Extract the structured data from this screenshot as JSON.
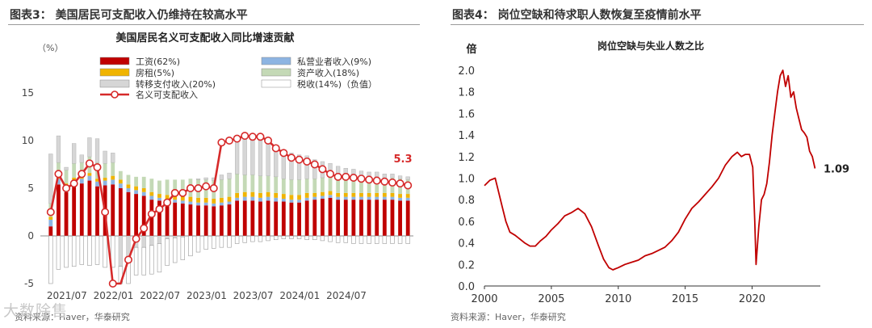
{
  "left": {
    "figure_title": "图表3：  美国居民可支配收入仍维持在较高水平",
    "source": "资料来源：Haver，华泰研究",
    "chart_data": {
      "type": "bar",
      "title": "美国居民名义可支配收入同比增速贡献",
      "ylabel": "（%）",
      "ylim": [
        -5,
        15
      ],
      "yticks": [
        -5,
        0,
        5,
        10,
        15
      ],
      "xticks": [
        "2021/07",
        "2022/01",
        "2022/07",
        "2023/01",
        "2023/07",
        "2024/01",
        "2024/07"
      ],
      "end_label": "5.3",
      "legend": [
        "工资(62%)",
        "私营业者收入(9%)",
        "房租(5%)",
        "资产收入(18%)",
        "转移支付收入(20%)",
        "税收(14%)（负值）",
        "名义可支配收入"
      ],
      "series": [
        {
          "name": "工资(62%)",
          "values": [
            1.0,
            5.4,
            4.6,
            5.2,
            5.5,
            5.8,
            5.2,
            5.3,
            5.4,
            5.0,
            4.6,
            4.4,
            4.2,
            3.8,
            3.7,
            3.5,
            3.5,
            3.4,
            3.3,
            3.2,
            3.2,
            3.1,
            3.2,
            3.3,
            3.7,
            3.7,
            3.7,
            3.6,
            3.7,
            3.6,
            3.6,
            3.5,
            3.5,
            3.7,
            3.8,
            3.9,
            4.0,
            3.8,
            3.8,
            3.8,
            3.8,
            3.8,
            3.8,
            3.8,
            3.8,
            3.7,
            3.7
          ]
        },
        {
          "name": "私营业者收入(9%)",
          "values": [
            0.7,
            0.6,
            0.6,
            0.6,
            0.5,
            0.5,
            0.5,
            0.5,
            0.5,
            0.5,
            0.4,
            0.4,
            0.4,
            0.4,
            0.3,
            0.3,
            0.3,
            0.3,
            0.3,
            0.3,
            0.3,
            0.3,
            0.3,
            0.3,
            0.3,
            0.4,
            0.4,
            0.4,
            0.4,
            0.4,
            0.3,
            0.3,
            0.3,
            0.3,
            0.3,
            0.3,
            0.3,
            0.3,
            0.3,
            0.3,
            0.3,
            0.3,
            0.3,
            0.3,
            0.3,
            0.3,
            0.3
          ]
        },
        {
          "name": "房租(5%)",
          "values": [
            0.3,
            0.3,
            0.3,
            0.3,
            0.3,
            0.3,
            0.3,
            0.3,
            0.4,
            0.4,
            0.4,
            0.4,
            0.4,
            0.4,
            0.4,
            0.5,
            0.5,
            0.5,
            0.5,
            0.5,
            0.5,
            0.5,
            0.5,
            0.5,
            0.5,
            0.5,
            0.5,
            0.5,
            0.5,
            0.5,
            0.5,
            0.5,
            0.5,
            0.5,
            0.4,
            0.4,
            0.4,
            0.4,
            0.4,
            0.4,
            0.4,
            0.4,
            0.4,
            0.4,
            0.4,
            0.4,
            0.4
          ]
        },
        {
          "name": "资产收入(18%)",
          "values": [
            1.4,
            1.4,
            1.4,
            1.5,
            1.4,
            1.7,
            1.7,
            1.5,
            1.4,
            0.9,
            1.0,
            1.0,
            1.2,
            1.4,
            1.4,
            1.6,
            1.6,
            1.7,
            1.9,
            1.9,
            1.9,
            1.9,
            1.9,
            1.9,
            2.0,
            1.8,
            1.8,
            1.8,
            1.7,
            1.7,
            1.6,
            1.6,
            1.6,
            1.5,
            1.5,
            1.5,
            1.5,
            1.6,
            1.6,
            1.7,
            1.7,
            1.7,
            1.7,
            1.6,
            1.6,
            1.6,
            1.5
          ]
        },
        {
          "name": "转移支付收入(20%)",
          "values": [
            5.2,
            2.8,
            0.3,
            2.1,
            0.8,
            2.0,
            2.5,
            1.3,
            1.0,
            -3.2,
            -2.6,
            -1.2,
            -1.2,
            -1.0,
            -0.8,
            -0.3,
            -0.2,
            -0.1,
            0.0,
            0.1,
            0.2,
            0.3,
            0.5,
            0.6,
            3.9,
            3.8,
            3.8,
            3.7,
            3.5,
            3.1,
            3.0,
            2.8,
            2.6,
            2.4,
            2.0,
            1.7,
            1.4,
            1.2,
            1.0,
            0.8,
            0.6,
            0.5,
            0.5,
            0.4,
            0.4,
            0.3,
            0.3
          ]
        },
        {
          "name": "税收(14%)（负值）",
          "values": [
            -5.0,
            -3.5,
            -3.3,
            -3.2,
            -3.0,
            -3.1,
            -3.0,
            -3.3,
            -3.3,
            -3.6,
            -3.4,
            -2.9,
            -2.9,
            -3.0,
            -3.0,
            -2.8,
            -2.6,
            -2.4,
            -2.1,
            -1.7,
            -1.4,
            -1.3,
            -1.2,
            -1.2,
            -0.8,
            -0.7,
            -0.6,
            -0.6,
            -0.5,
            -0.4,
            -0.3,
            -0.3,
            -0.3,
            -0.4,
            -0.4,
            -0.5,
            -0.6,
            -0.7,
            -0.7,
            -0.8,
            -0.8,
            -0.8,
            -0.8,
            -0.8,
            -0.8,
            -0.8,
            -0.8
          ]
        },
        {
          "name": "名义可支配收入",
          "values": [
            2.5,
            6.5,
            5.0,
            5.5,
            6.5,
            7.6,
            7.2,
            2.5,
            -5.0,
            -5.5,
            -2.5,
            -0.3,
            0.8,
            2.3,
            2.8,
            3.5,
            4.5,
            4.5,
            5.0,
            5.0,
            5.2,
            5.0,
            9.8,
            10.0,
            10.2,
            10.5,
            10.4,
            10.4,
            10.0,
            9.2,
            8.7,
            8.2,
            8.0,
            7.8,
            7.5,
            7.0,
            6.5,
            6.2,
            6.2,
            6.1,
            6.0,
            5.9,
            5.8,
            5.7,
            5.6,
            5.5,
            5.3
          ]
        }
      ],
      "colors": {
        "wage": "#c00000",
        "proprietor": "#8db4e2",
        "rent": "#f0b400",
        "asset": "#c4d9b6",
        "transfer": "#d6d6d6",
        "tax": "#ffffff",
        "line": "#d62a2a"
      }
    }
  },
  "right": {
    "figure_title": "图表4：  岗位空缺和待求职人数恢复至疫情前水平",
    "source": "资料来源：Haver，华泰研究",
    "chart_data": {
      "type": "line",
      "title": "岗位空缺与失业人数之比",
      "ylabel": "倍",
      "ylim": [
        0,
        2.0
      ],
      "yticks": [
        "0.0",
        "0.2",
        "0.4",
        "0.6",
        "0.8",
        "1.0",
        "1.2",
        "1.4",
        "1.6",
        "1.8",
        "2.0"
      ],
      "xlim": [
        2000,
        2025.1
      ],
      "xticks": [
        "2000",
        "2005",
        "2010",
        "2015",
        "2020"
      ],
      "end_label": "1.09",
      "color": "#c00000",
      "x": [
        2000.0,
        2000.4,
        2000.8,
        2001.0,
        2001.3,
        2001.6,
        2001.9,
        2002.3,
        2002.7,
        2003.0,
        2003.4,
        2003.8,
        2004.2,
        2004.6,
        2005.0,
        2005.5,
        2006.0,
        2006.5,
        2007.0,
        2007.5,
        2008.0,
        2008.5,
        2008.9,
        2009.3,
        2009.6,
        2010.0,
        2010.5,
        2011.0,
        2011.5,
        2012.0,
        2012.5,
        2013.0,
        2013.5,
        2014.0,
        2014.5,
        2015.0,
        2015.5,
        2016.0,
        2016.5,
        2017.0,
        2017.5,
        2018.0,
        2018.5,
        2018.9,
        2019.2,
        2019.5,
        2019.8,
        2020.05,
        2020.2,
        2020.3,
        2020.5,
        2020.7,
        2020.9,
        2021.1,
        2021.3,
        2021.5,
        2021.7,
        2021.9,
        2022.1,
        2022.3,
        2022.5,
        2022.7,
        2022.9,
        2023.1,
        2023.3,
        2023.5,
        2023.7,
        2023.9,
        2024.1,
        2024.3,
        2024.5,
        2024.7
      ],
      "y": [
        0.93,
        0.98,
        1.0,
        0.9,
        0.75,
        0.6,
        0.5,
        0.47,
        0.43,
        0.4,
        0.37,
        0.37,
        0.42,
        0.46,
        0.52,
        0.58,
        0.65,
        0.68,
        0.72,
        0.67,
        0.55,
        0.38,
        0.25,
        0.17,
        0.15,
        0.17,
        0.2,
        0.22,
        0.24,
        0.28,
        0.3,
        0.33,
        0.36,
        0.42,
        0.5,
        0.62,
        0.72,
        0.78,
        0.85,
        0.92,
        1.0,
        1.12,
        1.2,
        1.24,
        1.2,
        1.22,
        1.22,
        1.1,
        0.6,
        0.2,
        0.55,
        0.8,
        0.85,
        0.95,
        1.15,
        1.4,
        1.6,
        1.8,
        1.95,
        2.0,
        1.85,
        1.95,
        1.75,
        1.8,
        1.65,
        1.55,
        1.45,
        1.42,
        1.38,
        1.25,
        1.2,
        1.09
      ]
    }
  },
  "watermark": "大数除售"
}
